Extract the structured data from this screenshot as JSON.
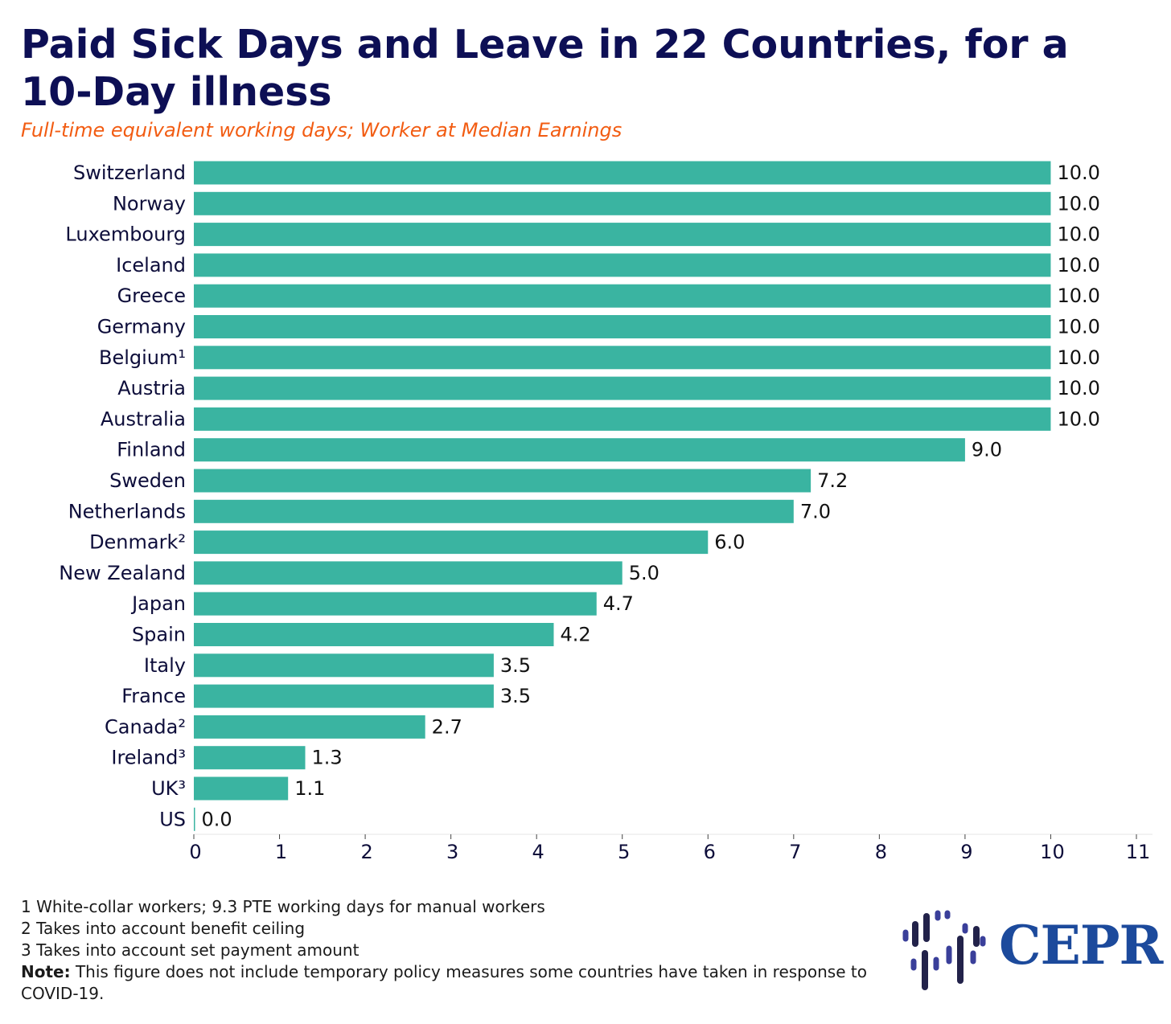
{
  "title": "Paid Sick Days and Leave in 22 Countries, for a 10-Day illness",
  "subtitle": "Full-time equivalent working days; Worker at Median Earnings",
  "colors": {
    "bar": "#3ab4a1",
    "title": "#0d0f55",
    "subtitle": "#f25c12",
    "logo": "#1c4a9c"
  },
  "chart_data": {
    "type": "bar",
    "orientation": "horizontal",
    "categories": [
      "Switzerland",
      "Norway",
      "Luxembourg",
      "Iceland",
      "Greece",
      "Germany",
      "Belgium¹",
      "Austria",
      "Australia",
      "Finland",
      "Sweden",
      "Netherlands",
      "Denmark²",
      "New Zealand",
      "Japan",
      "Spain",
      "Italy",
      "France",
      "Canada²",
      "Ireland³",
      "UK³",
      "US"
    ],
    "values": [
      10.0,
      10.0,
      10.0,
      10.0,
      10.0,
      10.0,
      10.0,
      10.0,
      10.0,
      9.0,
      7.2,
      7.0,
      6.0,
      5.0,
      4.7,
      4.2,
      3.5,
      3.5,
      2.7,
      1.3,
      1.1,
      0.0
    ],
    "value_labels": [
      "10.0",
      "10.0",
      "10.0",
      "10.0",
      "10.0",
      "10.0",
      "10.0",
      "10.0",
      "10.0",
      "9.0",
      "7.2",
      "7.0",
      "6.0",
      "5.0",
      "4.7",
      "4.2",
      "3.5",
      "3.5",
      "2.7",
      "1.3",
      "1.1",
      "0.0"
    ],
    "xlim": [
      0,
      11
    ],
    "xticks": [
      "0",
      "1",
      "2",
      "3",
      "4",
      "5",
      "6",
      "7",
      "8",
      "9",
      "10",
      "11"
    ],
    "grid": false,
    "legend": "none"
  },
  "footnotes": {
    "note1": "1 White-collar workers; 9.3 PTE working days for manual workers",
    "note2": "2 Takes into account benefit ceiling",
    "note3": "3 Takes into account set payment amount",
    "note_label": "Note:",
    "note_text": " This figure does not include temporary policy measures some countries have taken in response to COVID-19."
  },
  "logo": {
    "text": "CEPR",
    "icon": "cepr-logo-mark-icon"
  }
}
